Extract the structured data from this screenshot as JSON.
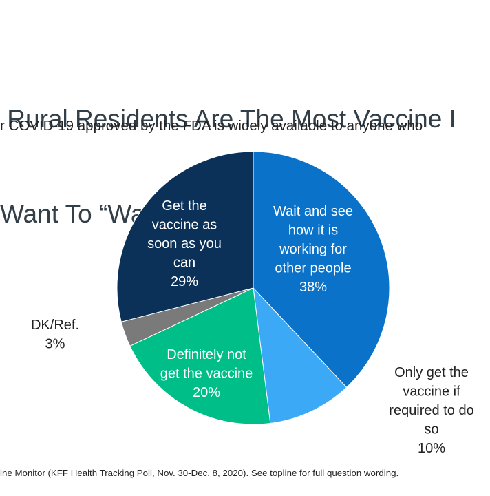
{
  "chart_data": {
    "type": "pie",
    "title_lines": [
      " Rural Residents Are The Most Vaccine I",
      "Want To “Wait And See”"
    ],
    "subtitle": "r COVID-19 approved by the FDA is widely available to anyone who",
    "slices": [
      {
        "id": "wait-and-see",
        "label_lines": [
          "Wait and see",
          "how it is",
          "working for",
          "other people",
          "38%"
        ],
        "value": 38,
        "color": "#0a72c9",
        "label_color": "#ffffff"
      },
      {
        "id": "only-if-required",
        "label_lines": [
          "Only get the",
          "vaccine if",
          "required to do",
          "so",
          "10%"
        ],
        "value": 10,
        "color": "#3ba9f5",
        "label_color": "#222222"
      },
      {
        "id": "definitely-not",
        "label_lines": [
          "Definitely not",
          "get the vaccine",
          "20%"
        ],
        "value": 20,
        "color": "#00be87",
        "label_color": "#ffffff"
      },
      {
        "id": "dk-ref",
        "label_lines": [
          "DK/Ref.",
          "3%"
        ],
        "value": 3,
        "color": "#7a7a7a",
        "label_color": "#222222"
      },
      {
        "id": "as-soon-as-possible",
        "label_lines": [
          "Get the",
          "vaccine as",
          "soon as you",
          "can",
          "29%"
        ],
        "value": 29,
        "color": "#0c3158",
        "label_color": "#ffffff"
      }
    ],
    "source": "ine Monitor (KFF Health Tracking Poll, Nov. 30-Dec. 8, 2020). See topline for full question wording."
  }
}
